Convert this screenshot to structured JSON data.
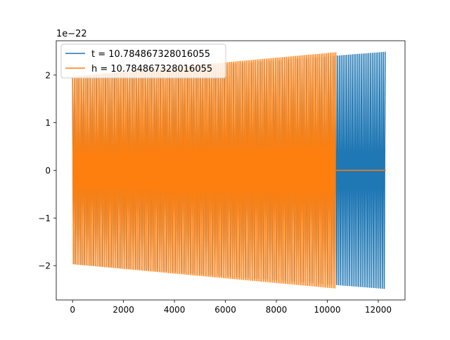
{
  "chart_data": {
    "type": "line",
    "title": "",
    "xlabel": "",
    "ylabel": "",
    "y_offset_label": "1e−22",
    "xlim": [
      -640,
      13050
    ],
    "ylim": [
      -2.72,
      2.72
    ],
    "x_ticks": [
      0,
      2000,
      4000,
      6000,
      8000,
      10000,
      12000
    ],
    "x_tick_labels": [
      "0",
      "2000",
      "4000",
      "6000",
      "8000",
      "10000",
      "12000"
    ],
    "y_ticks": [
      -2,
      -1,
      0,
      1,
      2
    ],
    "y_tick_labels": [
      "−2",
      "−1",
      "0",
      "1",
      "2"
    ],
    "grid": false,
    "legend": {
      "placement": "top-left",
      "entries": [
        "t = 10.784867328016055",
        "h = 10.784867328016055"
      ]
    },
    "series": [
      {
        "name": "t = 10.784867328016055",
        "color": "#1f77b4",
        "style": "oscillating envelope",
        "x_start": 0,
        "x_end": 12300,
        "amplitude_start": 1.97,
        "amplitude_end": 2.49,
        "tail_value": 0
      },
      {
        "name": "h = 10.784867328016055",
        "color": "#ff7f0e",
        "style": "oscillating envelope",
        "x_start": 0,
        "x_end": 10350,
        "amplitude_start": 1.97,
        "amplitude_end": 2.48,
        "tail_value": 0,
        "tail_x_end": 12300
      }
    ]
  }
}
